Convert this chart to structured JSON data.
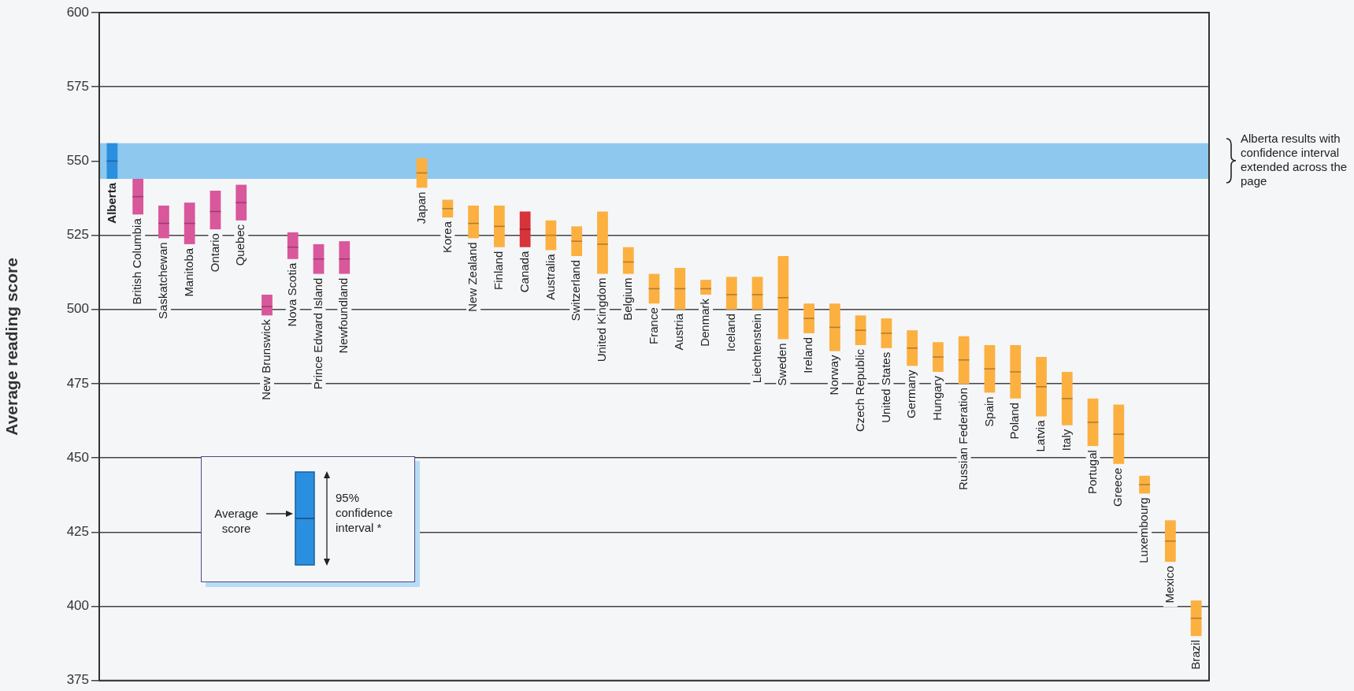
{
  "chart_data": {
    "type": "box",
    "ylabel": "Average reading score",
    "categories": [
      "Alberta",
      "British Columbia",
      "Saskatchewan",
      "Manitoba",
      "Ontario",
      "Quebec",
      "New Brunswick",
      "Nova Scotia",
      "Prince Edward Island",
      "Newfoundland",
      null,
      null,
      "Japan",
      "Korea",
      "New Zealand",
      "Finland",
      "Canada",
      "Australia",
      "Switzerland",
      "United Kingdom",
      "Belgium",
      "France",
      "Austria",
      "Denmark",
      "Iceland",
      "Liechtenstein",
      "Sweden",
      "Ireland",
      "Norway",
      "Czech Republic",
      "United States",
      "Germany",
      "Hungary",
      "Russian Federation",
      "Spain",
      "Poland",
      "Latvia",
      "Italy",
      "Portugal",
      "Greece",
      "Luxembourg",
      "Mexico",
      "Brazil"
    ],
    "series": [
      {
        "colors": [
          "#2b8fe0",
          "#d9579b",
          "#d9579b",
          "#d9579b",
          "#d9579b",
          "#d9579b",
          "#d9579b",
          "#d9579b",
          "#d9579b",
          "#d9579b",
          null,
          null,
          "#fbb040",
          "#fbb040",
          "#fbb040",
          "#fbb040",
          "#d8323a",
          "#fbb040",
          "#fbb040",
          "#fbb040",
          "#fbb040",
          "#fbb040",
          "#fbb040",
          "#fbb040",
          "#fbb040",
          "#fbb040",
          "#fbb040",
          "#fbb040",
          "#fbb040",
          "#fbb040",
          "#fbb040",
          "#fbb040",
          "#fbb040",
          "#fbb040",
          "#fbb040",
          "#fbb040",
          "#fbb040",
          "#fbb040",
          "#fbb040",
          "#fbb040",
          "#fbb040",
          "#fbb040",
          "#fbb040"
        ],
        "boxes": [
          {
            "low": 544,
            "q1": 544,
            "median": 550,
            "q3": 556,
            "high": 556
          },
          {
            "low": 532,
            "q1": 532,
            "median": 538,
            "q3": 544,
            "high": 544
          },
          {
            "low": 524,
            "q1": 524,
            "median": 529,
            "q3": 535,
            "high": 535
          },
          {
            "low": 522,
            "q1": 522,
            "median": 529,
            "q3": 536,
            "high": 536
          },
          {
            "low": 527,
            "q1": 527,
            "median": 533,
            "q3": 540,
            "high": 540
          },
          {
            "low": 530,
            "q1": 530,
            "median": 536,
            "q3": 542,
            "high": 542
          },
          {
            "low": 498,
            "q1": 498,
            "median": 501,
            "q3": 505,
            "high": 505
          },
          {
            "low": 517,
            "q1": 517,
            "median": 521,
            "q3": 526,
            "high": 526
          },
          {
            "low": 512,
            "q1": 512,
            "median": 517,
            "q3": 522,
            "high": 522
          },
          {
            "low": 512,
            "q1": 512,
            "median": 517,
            "q3": 523,
            "high": 523
          },
          null,
          null,
          {
            "low": 541,
            "q1": 541,
            "median": 546,
            "q3": 551,
            "high": 551
          },
          {
            "low": 531,
            "q1": 531,
            "median": 534,
            "q3": 537,
            "high": 537
          },
          {
            "low": 524,
            "q1": 524,
            "median": 529,
            "q3": 535,
            "high": 535
          },
          {
            "low": 521,
            "q1": 521,
            "median": 528,
            "q3": 535,
            "high": 535
          },
          {
            "low": 521,
            "q1": 521,
            "median": 527,
            "q3": 533,
            "high": 533
          },
          {
            "low": 520,
            "q1": 520,
            "median": 525,
            "q3": 530,
            "high": 530
          },
          {
            "low": 518,
            "q1": 518,
            "median": 523,
            "q3": 528,
            "high": 528
          },
          {
            "low": 512,
            "q1": 512,
            "median": 522,
            "q3": 533,
            "high": 533
          },
          {
            "low": 512,
            "q1": 512,
            "median": 516,
            "q3": 521,
            "high": 521
          },
          {
            "low": 502,
            "q1": 502,
            "median": 507,
            "q3": 512,
            "high": 512
          },
          {
            "low": 500,
            "q1": 500,
            "median": 507,
            "q3": 514,
            "high": 514
          },
          {
            "low": 505,
            "q1": 505,
            "median": 507,
            "q3": 510,
            "high": 510
          },
          {
            "low": 500,
            "q1": 500,
            "median": 505,
            "q3": 511,
            "high": 511
          },
          {
            "low": 500,
            "q1": 500,
            "median": 505,
            "q3": 511,
            "high": 511
          },
          {
            "low": 490,
            "q1": 490,
            "median": 504,
            "q3": 518,
            "high": 518
          },
          {
            "low": 492,
            "q1": 492,
            "median": 497,
            "q3": 502,
            "high": 502
          },
          {
            "low": 486,
            "q1": 486,
            "median": 494,
            "q3": 502,
            "high": 502
          },
          {
            "low": 488,
            "q1": 488,
            "median": 493,
            "q3": 498,
            "high": 498
          },
          {
            "low": 487,
            "q1": 487,
            "median": 492,
            "q3": 497,
            "high": 497
          },
          {
            "low": 481,
            "q1": 481,
            "median": 487,
            "q3": 493,
            "high": 493
          },
          {
            "low": 479,
            "q1": 479,
            "median": 484,
            "q3": 489,
            "high": 489
          },
          {
            "low": 475,
            "q1": 475,
            "median": 483,
            "q3": 491,
            "high": 491
          },
          {
            "low": 472,
            "q1": 472,
            "median": 480,
            "q3": 488,
            "high": 488
          },
          {
            "low": 470,
            "q1": 470,
            "median": 479,
            "q3": 488,
            "high": 488
          },
          {
            "low": 464,
            "q1": 464,
            "median": 474,
            "q3": 484,
            "high": 484
          },
          {
            "low": 461,
            "q1": 461,
            "median": 470,
            "q3": 479,
            "high": 479
          },
          {
            "low": 454,
            "q1": 454,
            "median": 462,
            "q3": 470,
            "high": 470
          },
          {
            "low": 448,
            "q1": 448,
            "median": 458,
            "q3": 468,
            "high": 468
          },
          {
            "low": 438,
            "q1": 438,
            "median": 441,
            "q3": 444,
            "high": 444
          },
          {
            "low": 415,
            "q1": 415,
            "median": 422,
            "q3": 429,
            "high": 429
          },
          {
            "low": 390,
            "q1": 390,
            "median": 396,
            "q3": 402,
            "high": 402
          }
        ]
      }
    ],
    "ylim": [
      375,
      600
    ],
    "yticks": [
      375,
      400,
      425,
      450,
      475,
      500,
      525,
      550,
      575,
      600
    ],
    "grid": "y",
    "bands": [
      {
        "axis": "y",
        "from": 544,
        "to": 556,
        "color": "#8ec8ef",
        "label": "Alberta results with confidence interval extended across the page"
      }
    ],
    "annotations": [
      "Average score",
      "95% confidence interval *"
    ]
  }
}
